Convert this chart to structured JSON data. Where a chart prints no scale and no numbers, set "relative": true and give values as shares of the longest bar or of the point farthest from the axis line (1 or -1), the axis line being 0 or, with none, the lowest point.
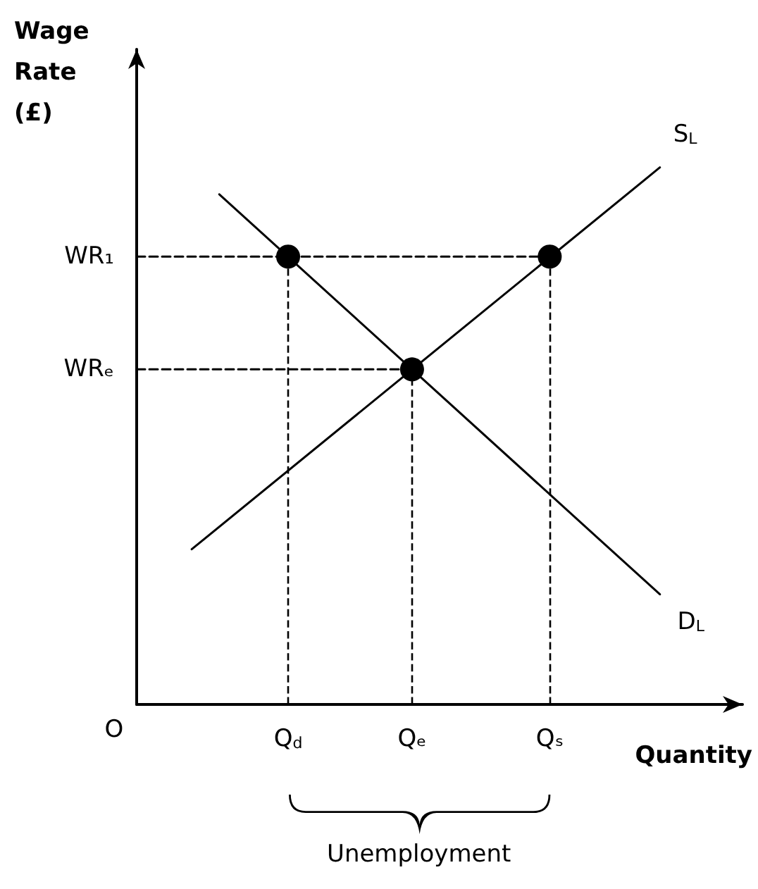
{
  "chart_data": {
    "type": "line",
    "relative": true,
    "xlabel": "Quantity",
    "ylabel": "Wage Rate (£)",
    "categories": [
      null,
      null,
      null,
      null,
      null,
      null,
      null,
      null,
      null,
      null,
      null,
      "Q$_{d}$",
      null,
      null,
      null,
      null,
      null,
      null,
      null,
      null,
      "Qₑ",
      null,
      null,
      null,
      null,
      null,
      null,
      null,
      null,
      null,
      "Qₛ",
      null,
      null,
      null,
      null,
      null,
      null,
      null,
      null,
      null,
      null,
      null,
      null,
      null,
      null
    ],
    "series": [
      {
        "name": "D$_{L}$",
        "color": "#000000",
        "values": [
          null,
          null,
          null,
          null,
          null,
          null,
          0.95,
          null,
          null,
          null,
          null,
          null,
          null,
          null,
          null,
          null,
          null,
          null,
          null,
          null,
          null,
          null,
          null,
          null,
          null,
          null,
          null,
          null,
          null,
          null,
          null,
          null,
          null,
          null,
          null,
          null,
          null,
          null,
          0.205,
          null,
          null,
          null,
          null,
          null,
          null
        ]
      },
      {
        "name": "S$_{L}$",
        "color": "#000000",
        "values": [
          null,
          null,
          null,
          null,
          0.289,
          null,
          null,
          null,
          null,
          null,
          null,
          null,
          null,
          null,
          null,
          null,
          null,
          null,
          null,
          null,
          null,
          null,
          null,
          null,
          null,
          null,
          null,
          null,
          null,
          null,
          null,
          null,
          null,
          null,
          null,
          null,
          null,
          null,
          1.0,
          null,
          null,
          null,
          null,
          null,
          null
        ]
      },
      {
        "name": "WR₁",
        "color": "#000000",
        "line_style": "dashed",
        "values": [
          0.834,
          null,
          null,
          null,
          null,
          null,
          null,
          null,
          null,
          null,
          null,
          null,
          null,
          null,
          null,
          null,
          null,
          null,
          null,
          null,
          null,
          null,
          null,
          null,
          null,
          null,
          null,
          null,
          null,
          null,
          0.834,
          null,
          null,
          null,
          null,
          null,
          null,
          null,
          null,
          null,
          null,
          null,
          null,
          null,
          null
        ]
      },
      {
        "name": "WRₑ",
        "color": "#000000",
        "line_style": "dashed",
        "values": [
          0.624,
          null,
          null,
          null,
          null,
          null,
          null,
          null,
          null,
          null,
          null,
          null,
          null,
          null,
          null,
          null,
          null,
          null,
          null,
          null,
          0.624,
          null,
          null,
          null,
          null,
          null,
          null,
          null,
          null,
          null,
          null,
          null,
          null,
          null,
          null,
          null,
          null,
          null,
          null,
          null,
          null,
          null,
          null,
          null,
          null
        ]
      },
      {
        "type": "lollipop",
        "color": "#000000",
        "marker": "circle",
        "line_style": "dashed",
        "values": [
          null,
          null,
          null,
          null,
          null,
          null,
          null,
          null,
          null,
          null,
          null,
          0.834,
          null,
          null,
          null,
          null,
          null,
          null,
          null,
          null,
          0.624,
          null,
          null,
          null,
          null,
          null,
          null,
          null,
          null,
          null,
          0.834,
          null,
          null,
          null,
          null,
          null,
          null,
          null,
          null,
          null,
          null,
          null,
          null,
          null,
          null
        ]
      }
    ],
    "annotations": [
      "O",
      "Unemployment"
    ]
  }
}
